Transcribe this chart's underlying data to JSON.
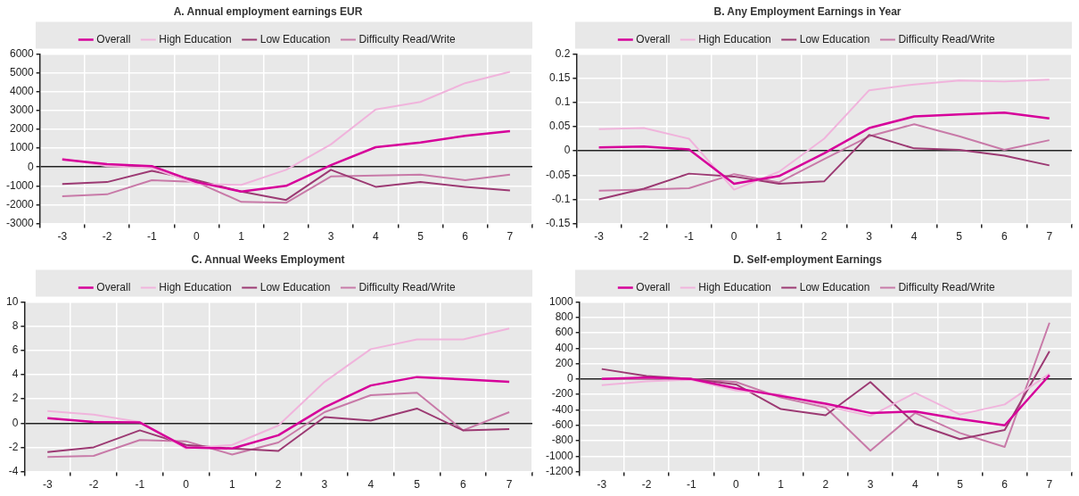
{
  "chart_data": [
    {
      "type": "line",
      "title": "A. Annual employment earnings EUR",
      "categories": [
        "-3",
        "-2",
        "-1",
        "0",
        "1",
        "2",
        "3",
        "4",
        "5",
        "6",
        "7"
      ],
      "ylim": [
        -3000,
        6000
      ],
      "yticks": [
        -3000,
        -2000,
        -1000,
        0,
        1000,
        2000,
        3000,
        4000,
        5000,
        6000
      ],
      "grid": true,
      "legend": "top",
      "marker": "none",
      "series": [
        {
          "name": "Overall",
          "color": "#d6009a",
          "values": [
            400,
            150,
            50,
            -800,
            -1300,
            -1000,
            100,
            1050,
            1300,
            1650,
            1900
          ]
        },
        {
          "name": "High Education",
          "color": "#f0b4dc",
          "values": [
            450,
            50,
            -50,
            -900,
            -950,
            -150,
            1200,
            3050,
            3450,
            4450,
            5050
          ]
        },
        {
          "name": "Low Education",
          "color": "#9c3a73",
          "values": [
            -900,
            -800,
            -200,
            -700,
            -1300,
            -1750,
            -150,
            -1050,
            -800,
            -1050,
            -1250
          ]
        },
        {
          "name": "Difficulty Read/Write",
          "color": "#c87aa8",
          "values": [
            -1550,
            -1450,
            -700,
            -800,
            -1850,
            -1900,
            -500,
            -450,
            -400,
            -700,
            -400
          ]
        }
      ]
    },
    {
      "type": "line",
      "title": "B. Any Employment Earnings in Year",
      "categories": [
        "-3",
        "-2",
        "-1",
        "0",
        "1",
        "2",
        "3",
        "4",
        "5",
        "6",
        "7"
      ],
      "ylim": [
        -0.15,
        0.2
      ],
      "yticks": [
        -0.15,
        -0.1,
        -0.05,
        0,
        0.05,
        0.1,
        0.15,
        0.2
      ],
      "grid": true,
      "legend": "top",
      "marker": "none",
      "series": [
        {
          "name": "Overall",
          "color": "#d6009a",
          "values": [
            0.007,
            0.009,
            0.003,
            -0.068,
            -0.052,
            -0.005,
            0.047,
            0.071,
            0.075,
            0.079,
            0.067
          ]
        },
        {
          "name": "High Education",
          "color": "#f0b4dc",
          "values": [
            0.045,
            0.047,
            0.025,
            -0.08,
            -0.043,
            0.025,
            0.125,
            0.137,
            0.145,
            0.143,
            0.147
          ]
        },
        {
          "name": "Low Education",
          "color": "#9c3a73",
          "values": [
            -0.1,
            -0.078,
            -0.047,
            -0.053,
            -0.068,
            -0.063,
            0.033,
            0.005,
            0.002,
            -0.01,
            -0.03
          ]
        },
        {
          "name": "Difficulty Read/Write",
          "color": "#c87aa8",
          "values": [
            -0.082,
            -0.08,
            -0.077,
            -0.048,
            -0.065,
            -0.017,
            0.03,
            0.055,
            0.03,
            0.002,
            0.022
          ]
        }
      ]
    },
    {
      "type": "line",
      "title": "C. Annual Weeks Employment",
      "categories": [
        "-3",
        "-2",
        "-1",
        "0",
        "1",
        "2",
        "3",
        "4",
        "5",
        "6",
        "7"
      ],
      "ylim": [
        -4,
        10
      ],
      "yticks": [
        -4,
        -2,
        0,
        2,
        4,
        6,
        8,
        10
      ],
      "grid": true,
      "legend": "top",
      "marker": "none",
      "series": [
        {
          "name": "Overall",
          "color": "#d6009a",
          "values": [
            0.4,
            0.1,
            0.05,
            -2,
            -2.1,
            -1,
            1.3,
            3.1,
            3.8,
            3.6,
            3.4
          ]
        },
        {
          "name": "High Education",
          "color": "#f0b4dc",
          "values": [
            1,
            0.7,
            0.1,
            -2.1,
            -1.8,
            -0.2,
            3.4,
            6.1,
            6.9,
            6.9,
            7.8
          ]
        },
        {
          "name": "Low Education",
          "color": "#9c3a73",
          "values": [
            -2.4,
            -2,
            -0.6,
            -1.8,
            -2.1,
            -2.3,
            0.5,
            0.2,
            1.2,
            -0.6,
            -0.5
          ]
        },
        {
          "name": "Difficulty Read/Write",
          "color": "#c87aa8",
          "values": [
            -2.8,
            -2.7,
            -1.4,
            -1.5,
            -2.6,
            -1.6,
            0.9,
            2.3,
            2.5,
            -0.6,
            0.9
          ]
        }
      ]
    },
    {
      "type": "line",
      "title": "D. Self-employment Earnings",
      "categories": [
        "-3",
        "-2",
        "-1",
        "0",
        "1",
        "2",
        "3",
        "4",
        "5",
        "6",
        "7"
      ],
      "ylim": [
        -1200,
        1000
      ],
      "yticks": [
        -1200,
        -1000,
        -800,
        -600,
        -400,
        -200,
        0,
        200,
        400,
        600,
        800,
        1000
      ],
      "grid": true,
      "legend": "top",
      "marker": "none",
      "series": [
        {
          "name": "Overall",
          "color": "#d6009a",
          "values": [
            0,
            20,
            0,
            -120,
            -220,
            -320,
            -440,
            -420,
            -520,
            -600,
            50
          ]
        },
        {
          "name": "High Education",
          "color": "#f0b4dc",
          "values": [
            -80,
            -30,
            -10,
            -150,
            -200,
            -350,
            -480,
            -180,
            -460,
            -330,
            70
          ]
        },
        {
          "name": "Low Education",
          "color": "#9c3a73",
          "values": [
            130,
            40,
            0,
            -70,
            -390,
            -470,
            -40,
            -580,
            -780,
            -660,
            360
          ]
        },
        {
          "name": "Difficulty Read/Write",
          "color": "#c87aa8",
          "values": [
            0,
            0,
            0,
            -40,
            -240,
            -370,
            -930,
            -440,
            -700,
            -880,
            730
          ]
        }
      ]
    }
  ]
}
